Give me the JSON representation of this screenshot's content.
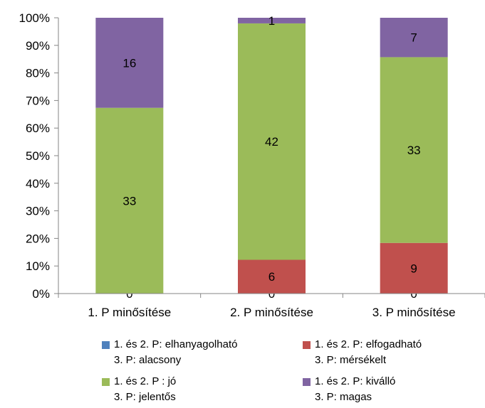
{
  "chart_data": {
    "type": "bar",
    "stacked": "percent",
    "categories": [
      "1. P minősítése",
      "2. P minősítése",
      "3. P minősítése"
    ],
    "series": [
      {
        "name": "1. és 2. P: elhanyagolható\n3. P: alacsony",
        "color": "#4F81BD",
        "values": [
          0,
          0,
          0
        ]
      },
      {
        "name": "1. és 2. P: elfogadható\n3. P: mérsékelt",
        "color": "#C0504D",
        "values": [
          0,
          6,
          9
        ]
      },
      {
        "name": "1. és 2. P : jó\n3. P: jelentős",
        "color": "#9BBB59",
        "values": [
          33,
          42,
          33
        ]
      },
      {
        "name": "1. és 2. P: kiválló\n3. P: magas",
        "color": "#8064A2",
        "values": [
          16,
          1,
          7
        ]
      }
    ],
    "ylim": [
      0,
      100
    ],
    "yticks": [
      "0%",
      "10%",
      "20%",
      "30%",
      "40%",
      "50%",
      "60%",
      "70%",
      "80%",
      "90%",
      "100%"
    ],
    "legend_position": "bottom",
    "grid": false
  }
}
